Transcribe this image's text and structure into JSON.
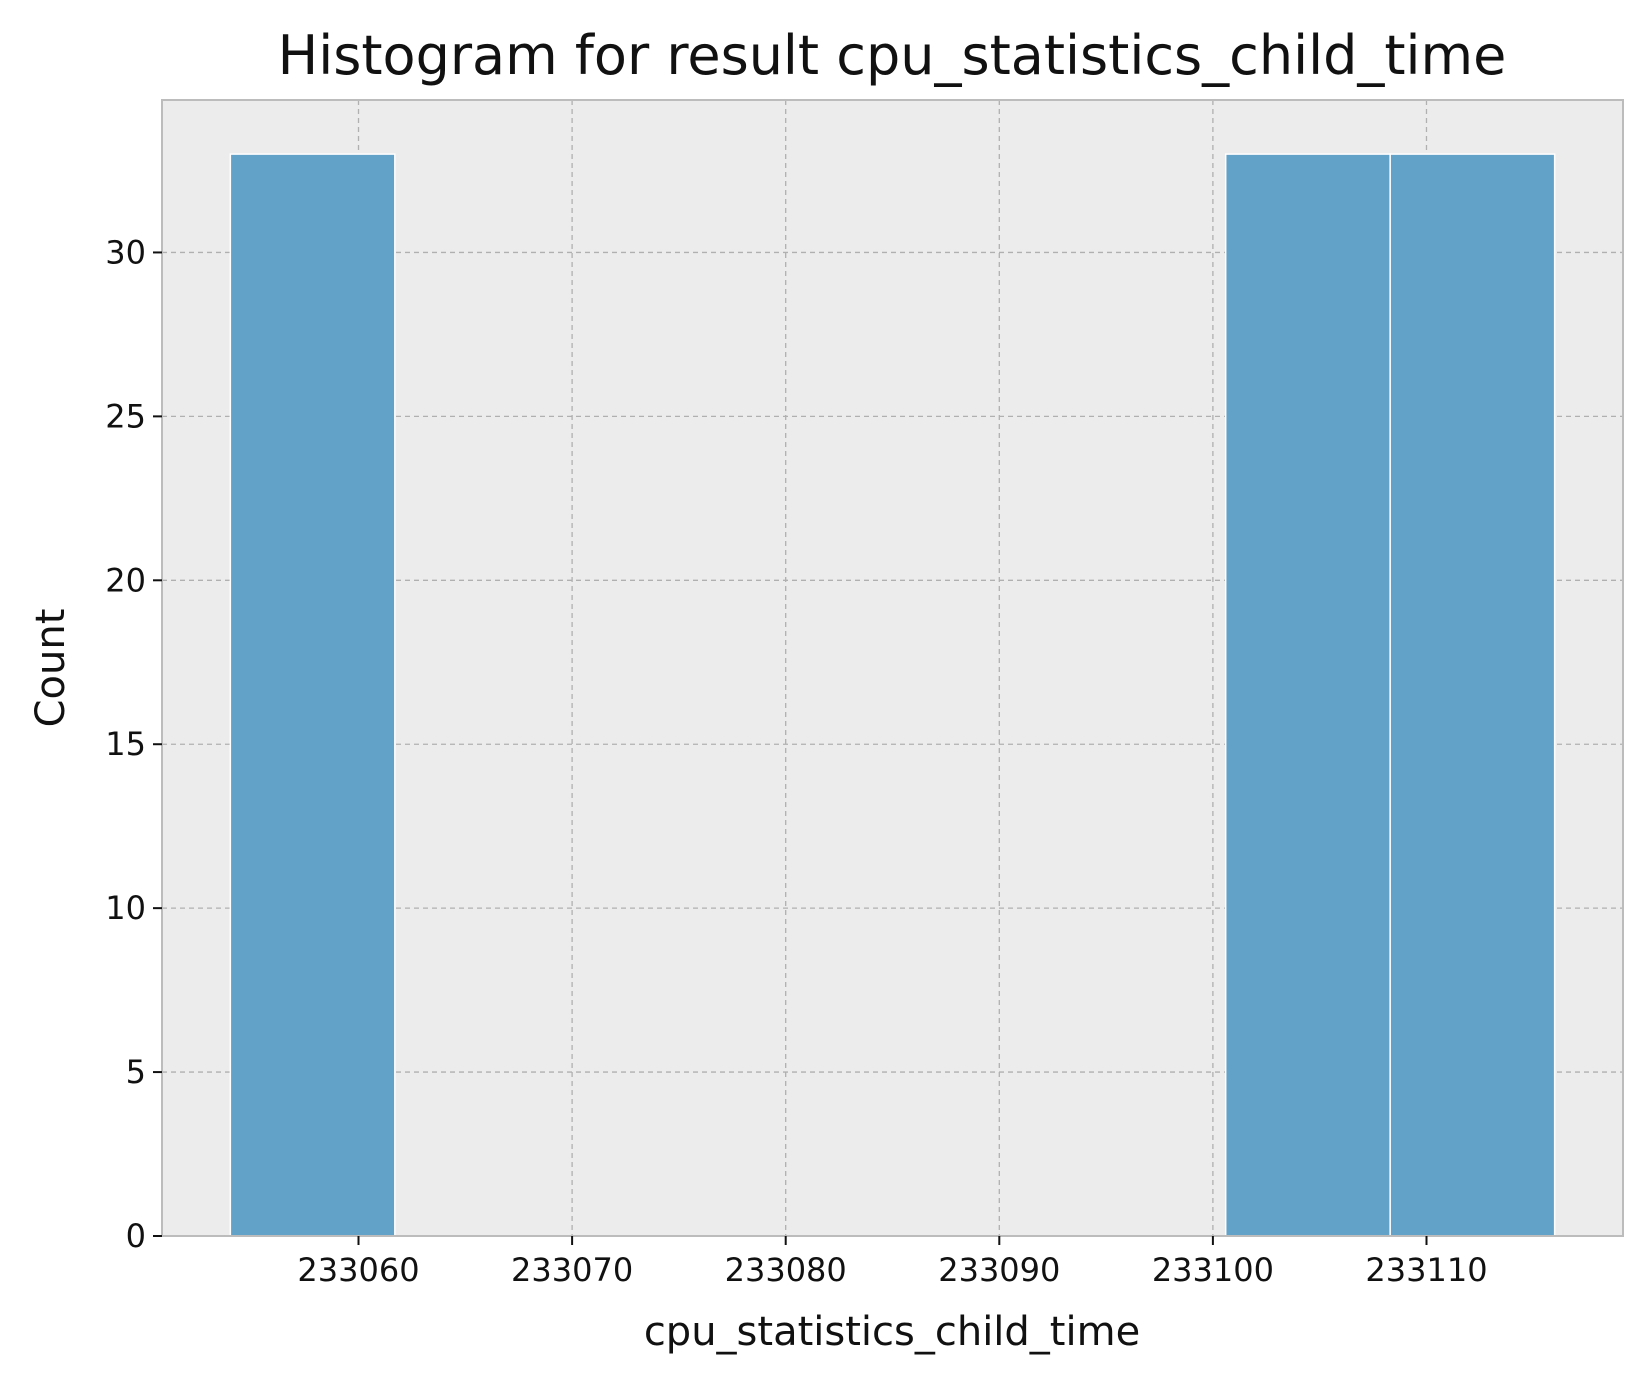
{
  "chart_data": {
    "type": "bar",
    "title": "Histogram for result cpu_statistics_child_time",
    "xlabel": "cpu_statistics_child_time",
    "ylabel": "Count",
    "bins": [
      {
        "x0": 233054.0,
        "x1": 233061.7,
        "count": 33
      },
      {
        "x0": 233061.7,
        "x1": 233069.4,
        "count": 0
      },
      {
        "x0": 233069.4,
        "x1": 233077.1,
        "count": 0
      },
      {
        "x0": 233077.1,
        "x1": 233084.8,
        "count": 0
      },
      {
        "x0": 233084.8,
        "x1": 233092.5,
        "count": 0
      },
      {
        "x0": 233092.5,
        "x1": 233100.2,
        "count": 0
      },
      {
        "x0": 233100.6,
        "x1": 233108.3,
        "count": 33
      },
      {
        "x0": 233108.3,
        "x1": 233116.0,
        "count": 33
      }
    ],
    "xticks": [
      233060,
      233070,
      233080,
      233090,
      233100,
      233110
    ],
    "yticks": [
      0,
      5,
      10,
      15,
      20,
      25,
      30
    ],
    "xlim": [
      233050.8,
      233119.2
    ],
    "ylim": [
      0,
      34.65
    ],
    "grid": true,
    "colors": {
      "bar": "#62a1c8",
      "plot_background": "#ececec",
      "grid": "#b0b0b0"
    }
  }
}
